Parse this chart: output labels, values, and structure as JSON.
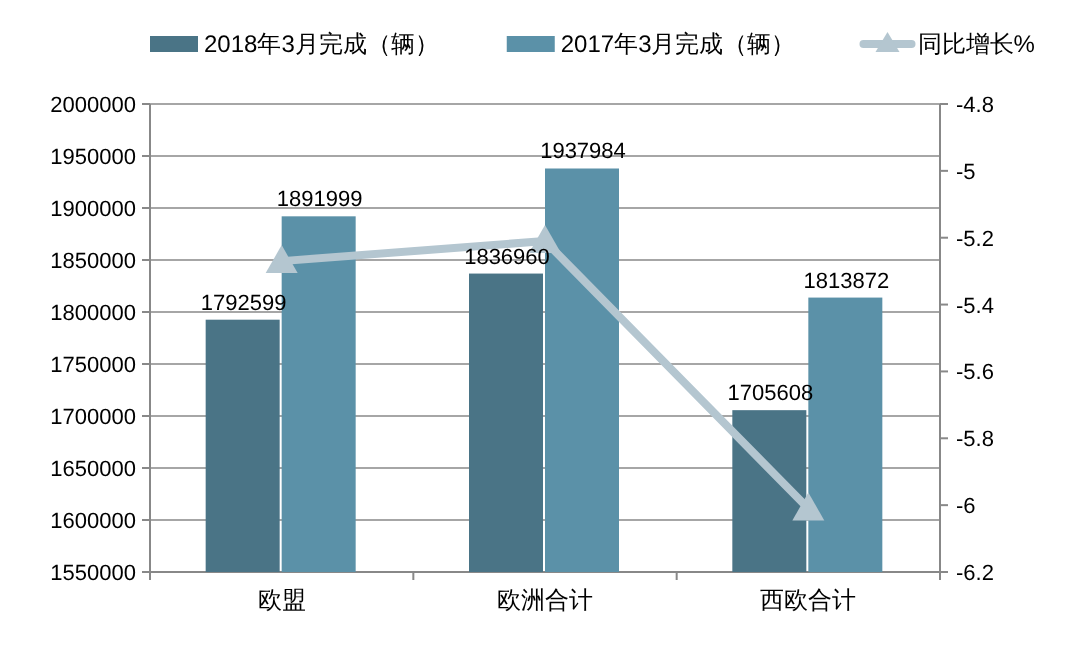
{
  "chart_data": {
    "type": "bar",
    "categories": [
      "欧盟",
      "欧洲合计",
      "西欧合计"
    ],
    "series": [
      {
        "name": "2018年3月完成（辆）",
        "color": "#4a7486",
        "values": [
          1792599,
          1836960,
          1705608
        ],
        "value_labels": [
          "1792599",
          "1836960",
          "1705608"
        ]
      },
      {
        "name": "2017年3月完成（辆）",
        "color": "#5b91a8",
        "values": [
          1891999,
          1937984,
          1813872
        ],
        "value_labels": [
          "1891999",
          "1937984",
          "1813872"
        ]
      },
      {
        "name": "同比增长%",
        "type": "line",
        "axis": "y2",
        "color": "#b4c6d0",
        "marker": "triangle",
        "values": [
          -5.27,
          -5.21,
          -6.01
        ]
      }
    ],
    "ylim": [
      1550000,
      2000000
    ],
    "yticks": [
      1550000,
      1600000,
      1650000,
      1700000,
      1750000,
      1800000,
      1850000,
      1900000,
      1950000,
      2000000
    ],
    "y2lim": [
      -6.2,
      -4.8
    ],
    "y2ticks": [
      -6.2,
      -6,
      -5.8,
      -5.6,
      -5.4,
      -5.2,
      -5,
      -4.8
    ],
    "grid": "y",
    "legend": "top"
  }
}
